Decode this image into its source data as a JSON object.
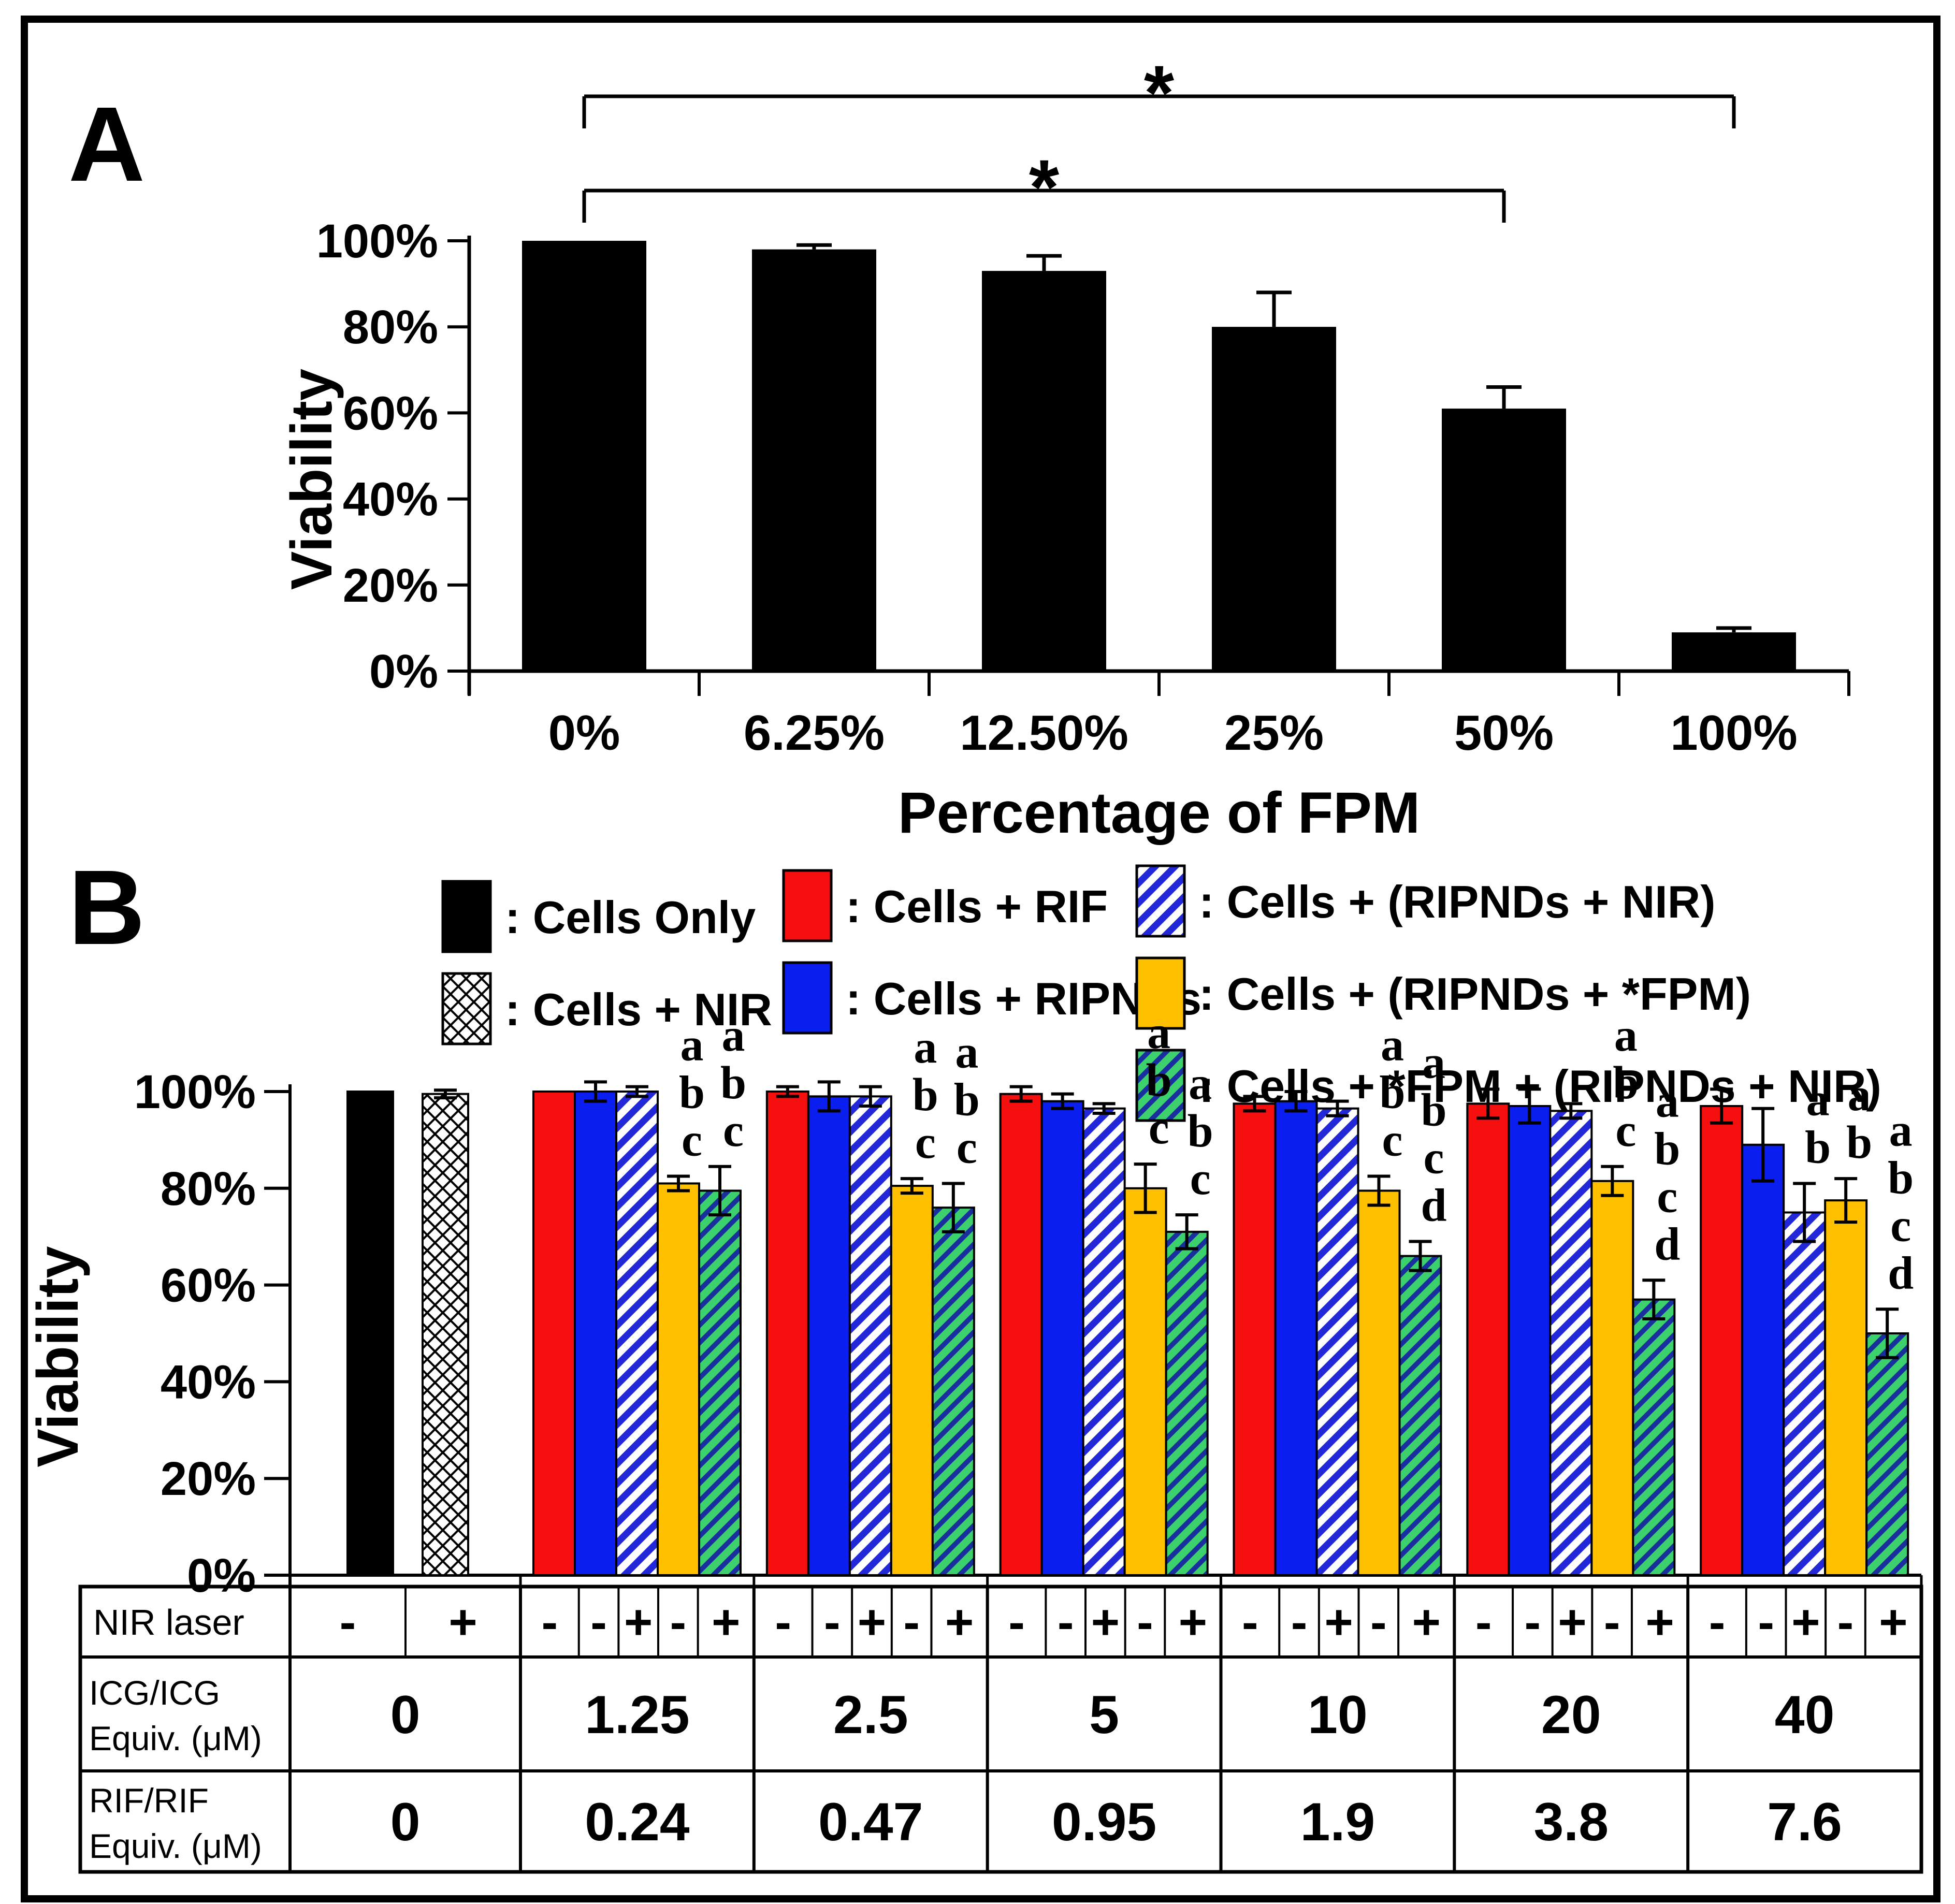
{
  "colors": {
    "black": "#000000",
    "white": "#ffffff",
    "red": "#f50f0f",
    "blue": "#0a1ef0",
    "yellow": "#ffc000",
    "green": "#3cd16d",
    "blue_stripe": "#2227d8",
    "green_stripe": "#1a2f9e"
  },
  "chart_data": [
    {
      "panel_label": "A",
      "type": "bar",
      "title": "",
      "xlabel": "Percentage of FPM",
      "ylabel": "Viability",
      "ylim": [
        0,
        100
      ],
      "yticks": [
        "0%",
        "20%",
        "40%",
        "60%",
        "80%",
        "100%"
      ],
      "categories": [
        "0%",
        "6.25%",
        "12.50%",
        "25%",
        "50%",
        "100%"
      ],
      "values": [
        100,
        98,
        93,
        80,
        61,
        9
      ],
      "errors": [
        0,
        1,
        3.5,
        8,
        5,
        1
      ],
      "bar_color": "black",
      "brackets": [
        {
          "from": 0,
          "to": 4,
          "symbol": "*"
        },
        {
          "from": 0,
          "to": 5,
          "symbol": "*"
        }
      ]
    },
    {
      "panel_label": "B",
      "type": "bar",
      "ylabel": "Viability",
      "ylim": [
        0,
        100
      ],
      "yticks": [
        "0%",
        "20%",
        "40%",
        "60%",
        "80%",
        "100%"
      ],
      "legend": [
        {
          "key": "cells-only",
          "label": ": Cells Only",
          "swatch": "black"
        },
        {
          "key": "cells-nir",
          "label": ": Cells + NIR",
          "swatch": "crosshatch"
        },
        {
          "key": "cells-rif",
          "label": ": Cells + RIF",
          "swatch": "red"
        },
        {
          "key": "cells-ripnds",
          "label": ": Cells + RIPNDs",
          "swatch": "blue"
        },
        {
          "key": "ripnds-nir",
          "label": ": Cells + (RIPNDs + NIR)",
          "swatch": "bluehatch"
        },
        {
          "key": "ripnds-fpm",
          "label": ": Cells + (RIPNDs + *FPM)",
          "swatch": "yellow"
        },
        {
          "key": "fpm-ripnds-nir",
          "label": ": Cells + *FPM + (RIPNDs + NIR)",
          "swatch": "greenhatch"
        }
      ],
      "groups": [
        {
          "icg": "0",
          "rif": "0",
          "nir": [
            "-",
            "+"
          ],
          "bars": [
            {
              "series": "cells-only",
              "value": 100,
              "error": 0,
              "letters": []
            },
            {
              "series": "cells-nir",
              "value": 99.5,
              "error": 0.8,
              "letters": []
            }
          ]
        },
        {
          "icg": "1.25",
          "rif": "0.24",
          "nir": [
            "-",
            "-",
            "+",
            "-",
            "+"
          ],
          "bars": [
            {
              "series": "cells-rif",
              "value": 100,
              "error": 0,
              "letters": []
            },
            {
              "series": "cells-ripnds",
              "value": 100,
              "error": 2,
              "letters": []
            },
            {
              "series": "ripnds-nir",
              "value": 100,
              "error": 1,
              "letters": []
            },
            {
              "series": "ripnds-fpm",
              "value": 81,
              "error": 1.5,
              "letters": [
                "a",
                "b",
                "c"
              ]
            },
            {
              "series": "fpm-ripnds-nir",
              "value": 79.5,
              "error": 5,
              "letters": [
                "a",
                "b",
                "c"
              ]
            }
          ]
        },
        {
          "icg": "2.5",
          "rif": "0.47",
          "nir": [
            "-",
            "-",
            "+",
            "-",
            "+"
          ],
          "bars": [
            {
              "series": "cells-rif",
              "value": 100,
              "error": 1,
              "letters": []
            },
            {
              "series": "cells-ripnds",
              "value": 99,
              "error": 3,
              "letters": []
            },
            {
              "series": "ripnds-nir",
              "value": 99,
              "error": 2,
              "letters": []
            },
            {
              "series": "ripnds-fpm",
              "value": 80.5,
              "error": 1.5,
              "letters": [
                "a",
                "b",
                "c"
              ]
            },
            {
              "series": "fpm-ripnds-nir",
              "value": 76,
              "error": 5,
              "letters": [
                "a",
                "b",
                "c"
              ]
            }
          ]
        },
        {
          "icg": "5",
          "rif": "0.95",
          "nir": [
            "-",
            "-",
            "+",
            "-",
            "+"
          ],
          "bars": [
            {
              "series": "cells-rif",
              "value": 99.5,
              "error": 1.5,
              "letters": []
            },
            {
              "series": "cells-ripnds",
              "value": 98,
              "error": 1.5,
              "letters": []
            },
            {
              "series": "ripnds-nir",
              "value": 96.5,
              "error": 1,
              "letters": []
            },
            {
              "series": "ripnds-fpm",
              "value": 80,
              "error": 5,
              "letters": [
                "a",
                "b",
                "c"
              ]
            },
            {
              "series": "fpm-ripnds-nir",
              "value": 71,
              "error": 3.5,
              "letters": [
                "a",
                "b",
                "c"
              ]
            }
          ]
        },
        {
          "icg": "10",
          "rif": "1.9",
          "nir": [
            "-",
            "-",
            "+",
            "-",
            "+"
          ],
          "bars": [
            {
              "series": "cells-rif",
              "value": 97.5,
              "error": 1.5,
              "letters": []
            },
            {
              "series": "cells-ripnds",
              "value": 98,
              "error": 2,
              "letters": []
            },
            {
              "series": "ripnds-nir",
              "value": 96.5,
              "error": 1.5,
              "letters": []
            },
            {
              "series": "ripnds-fpm",
              "value": 79.5,
              "error": 3,
              "letters": [
                "a",
                "b",
                "c"
              ]
            },
            {
              "series": "fpm-ripnds-nir",
              "value": 66,
              "error": 3,
              "letters": [
                "a",
                "b",
                "c",
                "d"
              ]
            }
          ]
        },
        {
          "icg": "20",
          "rif": "3.8",
          "nir": [
            "-",
            "-",
            "+",
            "-",
            "+"
          ],
          "bars": [
            {
              "series": "cells-rif",
              "value": 97.5,
              "error": 3,
              "letters": []
            },
            {
              "series": "cells-ripnds",
              "value": 97,
              "error": 3.5,
              "letters": []
            },
            {
              "series": "ripnds-nir",
              "value": 96,
              "error": 1.5,
              "letters": []
            },
            {
              "series": "ripnds-fpm",
              "value": 81.5,
              "error": 3,
              "letters": [
                "a",
                "b",
                "c"
              ]
            },
            {
              "series": "fpm-ripnds-nir",
              "value": 57,
              "error": 4,
              "letters": [
                "a",
                "b",
                "c",
                "d"
              ]
            }
          ]
        },
        {
          "icg": "40",
          "rif": "7.6",
          "nir": [
            "-",
            "-",
            "+",
            "-",
            "+"
          ],
          "bars": [
            {
              "series": "cells-rif",
              "value": 97,
              "error": 3.5,
              "letters": []
            },
            {
              "series": "cells-ripnds",
              "value": 89,
              "error": 7.5,
              "letters": []
            },
            {
              "series": "ripnds-nir",
              "value": 75,
              "error": 6,
              "letters": [
                "a",
                "b"
              ]
            },
            {
              "series": "ripnds-fpm",
              "value": 77.5,
              "error": 4.5,
              "letters": [
                "a",
                "b"
              ]
            },
            {
              "series": "fpm-ripnds-nir",
              "value": 50,
              "error": 5,
              "letters": [
                "a",
                "b",
                "c",
                "d"
              ]
            }
          ]
        }
      ],
      "table": {
        "row_headers": [
          [
            "NIR laser"
          ],
          [
            "ICG/ICG",
            "Equiv. (μM)"
          ],
          [
            "RIF/RIF",
            "Equiv. (μM)"
          ]
        ]
      }
    }
  ]
}
